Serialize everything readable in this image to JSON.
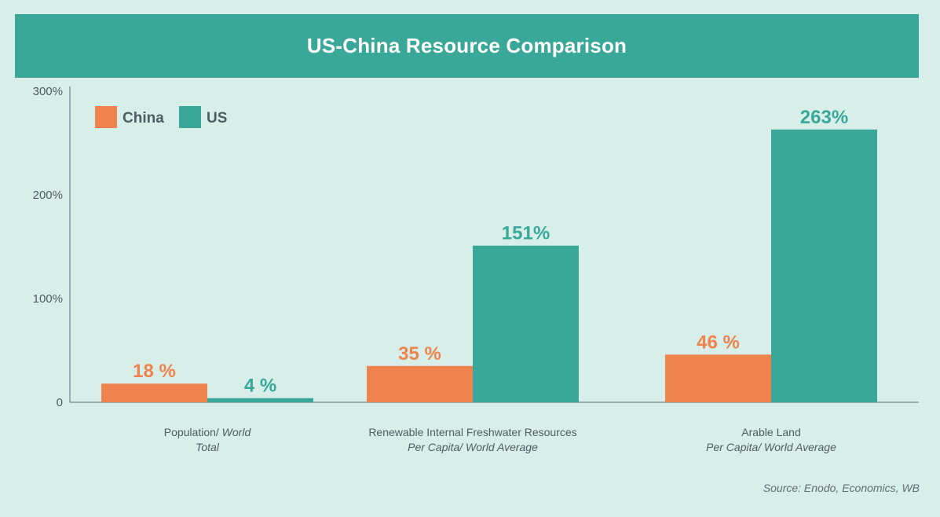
{
  "title": "US-China Resource Comparison",
  "source": "Source: Enodo, Economics, WB",
  "colors": {
    "china": "#ef834e",
    "us": "#3aa899",
    "axis": "#5f6e76",
    "text": "#4e5c64"
  },
  "chart_data": {
    "type": "bar",
    "title": "US-China Resource Comparison",
    "ylim": [
      0,
      300
    ],
    "yticks": [
      0,
      100,
      200,
      300
    ],
    "ytick_labels": [
      "0",
      "100%",
      "200%",
      "300%"
    ],
    "legend_position": "top-left",
    "categories": [
      {
        "line1": "Population/",
        "line1_italic": "World",
        "line2": "Total"
      },
      {
        "line1": "Renewable Internal Freshwater Resources",
        "line1_italic": "",
        "line2": "Per Capita/ World Average"
      },
      {
        "line1": "Arable Land",
        "line1_italic": "",
        "line2": "Per Capita/ World Average"
      }
    ],
    "series": [
      {
        "name": "China",
        "values": [
          18,
          35,
          46
        ],
        "labels": [
          "18 %",
          "35 %",
          "46 %"
        ]
      },
      {
        "name": "US",
        "values": [
          4,
          151,
          263
        ],
        "labels": [
          "4 %",
          "151%",
          "263%"
        ]
      }
    ]
  }
}
